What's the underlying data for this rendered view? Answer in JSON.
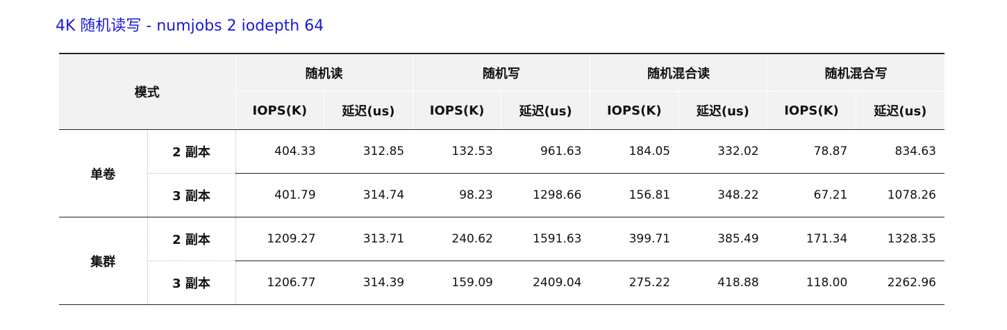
{
  "title": "4K 随机读写 - numjobs 2 iodepth 64",
  "colors": {
    "title": "#1a1adb",
    "header_bg": "#f2f2f3",
    "rule": "#222222"
  },
  "table": {
    "mode_header": "模式",
    "groups": [
      {
        "label": "随机读"
      },
      {
        "label": "随机写"
      },
      {
        "label": "随机混合读"
      },
      {
        "label": "随机混合写"
      }
    ],
    "sub_headers": [
      "IOPS(K)",
      "延迟(us)",
      "IOPS(K)",
      "延迟(us)",
      "IOPS(K)",
      "延迟(us)",
      "IOPS(K)",
      "延迟(us)"
    ],
    "rows": [
      {
        "mode": "单卷",
        "replicas": [
          {
            "label": "2 副本",
            "values": [
              "404.33",
              "312.85",
              "132.53",
              "961.63",
              "184.05",
              "332.02",
              "78.87",
              "834.63"
            ]
          },
          {
            "label": "3 副本",
            "values": [
              "401.79",
              "314.74",
              "98.23",
              "1298.66",
              "156.81",
              "348.22",
              "67.21",
              "1078.26"
            ]
          }
        ]
      },
      {
        "mode": "集群",
        "replicas": [
          {
            "label": "2 副本",
            "values": [
              "1209.27",
              "313.71",
              "240.62",
              "1591.63",
              "399.71",
              "385.49",
              "171.34",
              "1328.35"
            ]
          },
          {
            "label": "3 副本",
            "values": [
              "1206.77",
              "314.39",
              "159.09",
              "2409.04",
              "275.22",
              "418.88",
              "118.00",
              "2262.96"
            ]
          }
        ]
      }
    ]
  }
}
